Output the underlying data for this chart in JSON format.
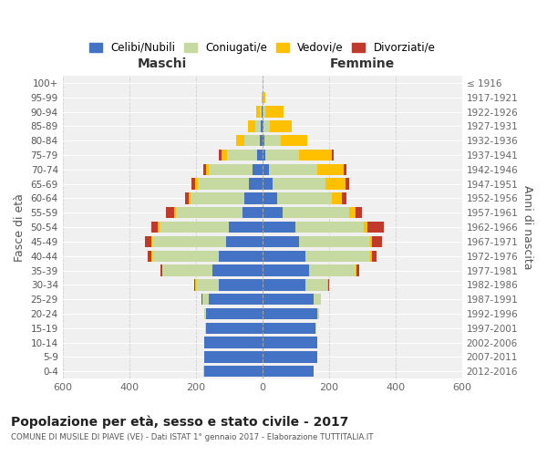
{
  "age_groups": [
    "0-4",
    "5-9",
    "10-14",
    "15-19",
    "20-24",
    "25-29",
    "30-34",
    "35-39",
    "40-44",
    "45-49",
    "50-54",
    "55-59",
    "60-64",
    "65-69",
    "70-74",
    "75-79",
    "80-84",
    "85-89",
    "90-94",
    "95-99",
    "100+"
  ],
  "birth_years": [
    "2012-2016",
    "2007-2011",
    "2002-2006",
    "1997-2001",
    "1992-1996",
    "1987-1991",
    "1982-1986",
    "1977-1981",
    "1972-1976",
    "1967-1971",
    "1962-1966",
    "1957-1961",
    "1952-1956",
    "1947-1951",
    "1942-1946",
    "1937-1941",
    "1932-1936",
    "1927-1931",
    "1922-1926",
    "1917-1921",
    "≤ 1916"
  ],
  "colors": {
    "celibi": "#4472c4",
    "coniugati": "#c5d9a0",
    "vedovi": "#ffc000",
    "divorziati": "#c0392b"
  },
  "maschi": {
    "celibi": [
      175,
      175,
      175,
      170,
      170,
      160,
      130,
      150,
      130,
      110,
      100,
      60,
      55,
      40,
      30,
      15,
      8,
      4,
      2,
      0,
      0
    ],
    "coniugati": [
      2,
      0,
      0,
      2,
      5,
      20,
      70,
      150,
      200,
      220,
      210,
      200,
      160,
      155,
      130,
      90,
      45,
      18,
      5,
      0,
      0
    ],
    "vedovi": [
      0,
      0,
      0,
      0,
      0,
      0,
      1,
      1,
      2,
      3,
      3,
      5,
      5,
      8,
      10,
      18,
      25,
      20,
      10,
      2,
      0
    ],
    "divorziati": [
      0,
      0,
      0,
      0,
      0,
      2,
      3,
      5,
      12,
      20,
      20,
      25,
      12,
      10,
      8,
      8,
      0,
      0,
      0,
      0,
      0
    ]
  },
  "femmine": {
    "nubili": [
      155,
      165,
      165,
      160,
      165,
      155,
      130,
      140,
      130,
      110,
      100,
      60,
      45,
      30,
      20,
      10,
      5,
      4,
      2,
      0,
      0
    ],
    "coniugate": [
      0,
      0,
      0,
      2,
      5,
      20,
      65,
      140,
      195,
      215,
      205,
      200,
      165,
      160,
      145,
      100,
      50,
      20,
      8,
      0,
      0
    ],
    "vedove": [
      0,
      0,
      0,
      0,
      0,
      1,
      2,
      3,
      5,
      5,
      10,
      20,
      30,
      60,
      80,
      100,
      80,
      65,
      55,
      8,
      2
    ],
    "divorziate": [
      0,
      0,
      0,
      0,
      0,
      1,
      3,
      8,
      12,
      30,
      50,
      20,
      12,
      10,
      8,
      5,
      0,
      0,
      0,
      0,
      0
    ]
  },
  "xlim": 600,
  "title": "Popolazione per età, sesso e stato civile - 2017",
  "subtitle": "COMUNE DI MUSILE DI PIAVE (VE) - Dati ISTAT 1° gennaio 2017 - Elaborazione TUTTITALIA.IT",
  "xlabel_left": "Maschi",
  "xlabel_right": "Femmine",
  "ylabel": "Fasce di età",
  "ylabel_right": "Anni di nascita",
  "legend_labels": [
    "Celibi/Nubili",
    "Coniugati/e",
    "Vedovi/e",
    "Divorziati/e"
  ],
  "bg_color": "#f0f0f0",
  "grid_color": "#cccccc"
}
